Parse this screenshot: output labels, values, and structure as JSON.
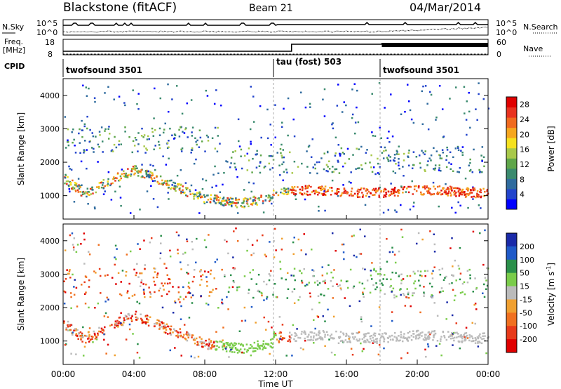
{
  "header": {
    "station": "Blackstone (fitACF)",
    "beam": "Beam 21",
    "date": "04/Mar/2014"
  },
  "summary_panels": {
    "nsky": {
      "left_label": "N.Sky",
      "left_ticks": [
        "10^5",
        "10^0"
      ],
      "right_ticks": [
        "10^5",
        "10^0"
      ],
      "right_label": "N.Search"
    },
    "freq": {
      "left_label_line1": "Freq.",
      "left_label_line2": "[MHz]",
      "left_ticks": [
        "18",
        "8"
      ],
      "right_ticks": [
        "60",
        "0"
      ],
      "right_label": "Nave"
    },
    "cpid": {
      "label": "CPID",
      "segments": [
        {
          "name": "twofsound 3501",
          "start_hour": 0,
          "end_hour": 12.0
        },
        {
          "name": "tau (fost) 503",
          "start_hour": 12.0,
          "end_hour": 18.0
        },
        {
          "name": "twofsound 3501",
          "start_hour": 18.0,
          "end_hour": 24.0
        }
      ]
    }
  },
  "chart_data": [
    {
      "type": "heatmap",
      "panel": "power",
      "ylabel": "Slant Range [km]",
      "yticks": [
        "1000",
        "2000",
        "3000",
        "4000"
      ],
      "ylim": [
        300,
        4500
      ],
      "xlim": [
        0,
        24
      ],
      "colorbar": {
        "label": "Power [dB]",
        "ticks": [
          "4",
          "8",
          "12",
          "16",
          "20",
          "24",
          "28"
        ],
        "range": [
          0,
          30
        ],
        "colors": [
          "#0000ff",
          "#2244cc",
          "#2f6b9e",
          "#3a8a6e",
          "#5fa64a",
          "#a8c84a",
          "#f5e11f",
          "#f5a61f",
          "#f06a1f",
          "#e8321f",
          "#e00000"
        ]
      }
    },
    {
      "type": "heatmap",
      "panel": "velocity",
      "ylabel": "Slant Range [km]",
      "yticks": [
        "1000",
        "2000",
        "3000",
        "4000"
      ],
      "ylim": [
        300,
        4500
      ],
      "xlim": [
        0,
        24
      ],
      "colorbar": {
        "label": "Velocity [m s",
        "label_sup": "-1",
        "label_end": "]",
        "ticks": [
          "200",
          "100",
          "50",
          "15",
          "-15",
          "-50",
          "-100",
          "-200"
        ],
        "colors": [
          "#1a2aa8",
          "#1f5ac8",
          "#2a8f4a",
          "#7acc4a",
          "#bbbbbb",
          "#f0a030",
          "#f07020",
          "#e83a1a",
          "#e00000"
        ]
      }
    }
  ],
  "x_axis": {
    "ticks": [
      "00:00",
      "04:00",
      "08:00",
      "12:00",
      "16:00",
      "20:00",
      "00:00"
    ],
    "label": "Time UT"
  }
}
